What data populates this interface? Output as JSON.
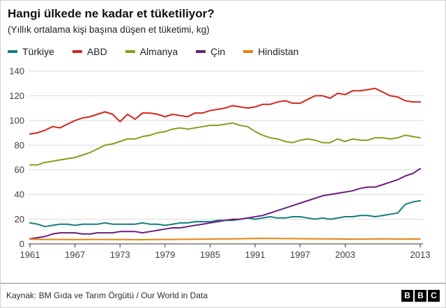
{
  "header": {
    "title": "Hangi ülkede ne kadar et tüketiliyor?",
    "subtitle": "(Yıllık ortalama kişi başına düşen et tüketimi, kg)"
  },
  "footer": {
    "source": "Kaynak: BM Gıda ve Tarım Örgütü / Our World in Data",
    "logo": [
      "B",
      "B",
      "C"
    ]
  },
  "chart_data": {
    "type": "line",
    "title": "Hangi ülkede ne kadar et tüketiliyor?",
    "subtitle": "(Yıllık ortalama kişi başına düşen et tüketimi, kg)",
    "xlabel": "",
    "ylabel": "",
    "ylim": [
      0,
      140
    ],
    "yticks": [
      0,
      20,
      40,
      60,
      80,
      100,
      120,
      140
    ],
    "xticks": [
      1961,
      1967,
      1973,
      1979,
      1985,
      1991,
      1997,
      2003,
      2013
    ],
    "grid": true,
    "legend_position": "top",
    "axis_label_color": "#404040",
    "gridline_color": "#d9d9d9",
    "baseline_color": "#333333",
    "x": [
      1961,
      1962,
      1963,
      1964,
      1965,
      1966,
      1967,
      1968,
      1969,
      1970,
      1971,
      1972,
      1973,
      1974,
      1975,
      1976,
      1977,
      1978,
      1979,
      1980,
      1981,
      1982,
      1983,
      1984,
      1985,
      1986,
      1987,
      1988,
      1989,
      1990,
      1991,
      1992,
      1993,
      1994,
      1995,
      1996,
      1997,
      1998,
      1999,
      2000,
      2001,
      2002,
      2003,
      2004,
      2005,
      2006,
      2007,
      2008,
      2009,
      2010,
      2011,
      2012,
      2013
    ],
    "series": [
      {
        "name": "Türkiye",
        "color": "#147d7d",
        "values": [
          17,
          16,
          14,
          15,
          16,
          16,
          15,
          16,
          16,
          16,
          17,
          16,
          16,
          16,
          16,
          17,
          16,
          16,
          15,
          16,
          17,
          17,
          18,
          18,
          18,
          19,
          19,
          19,
          20,
          21,
          20,
          21,
          22,
          21,
          21,
          22,
          22,
          21,
          20,
          21,
          20,
          21,
          22,
          22,
          23,
          23,
          22,
          23,
          24,
          25,
          32,
          34,
          35
        ]
      },
      {
        "name": "ABD",
        "color": "#d2251d",
        "values": [
          89,
          90,
          92,
          95,
          94,
          97,
          100,
          102,
          103,
          105,
          107,
          105,
          99,
          105,
          101,
          106,
          106,
          105,
          103,
          105,
          104,
          103,
          106,
          106,
          108,
          109,
          110,
          112,
          111,
          110,
          111,
          113,
          113,
          115,
          116,
          114,
          114,
          117,
          120,
          120,
          118,
          122,
          121,
          124,
          124,
          125,
          126,
          123,
          120,
          119,
          116,
          115,
          115
        ]
      },
      {
        "name": "Almanya",
        "color": "#7fa11a",
        "values": [
          64,
          64,
          66,
          67,
          68,
          69,
          70,
          72,
          74,
          77,
          80,
          81,
          83,
          85,
          85,
          87,
          88,
          90,
          91,
          93,
          94,
          93,
          94,
          95,
          96,
          96,
          97,
          98,
          96,
          95,
          91,
          88,
          86,
          85,
          83,
          82,
          84,
          85,
          84,
          82,
          82,
          85,
          83,
          85,
          84,
          84,
          86,
          86,
          85,
          86,
          88,
          87,
          86
        ]
      },
      {
        "name": "Çin",
        "color": "#6b1f7c",
        "values": [
          4,
          5,
          6,
          8,
          9,
          9,
          9,
          8,
          8,
          9,
          9,
          9,
          10,
          10,
          10,
          9,
          10,
          11,
          12,
          13,
          13,
          14,
          15,
          16,
          17,
          18,
          19,
          20,
          20,
          21,
          22,
          23,
          25,
          27,
          29,
          31,
          33,
          35,
          37,
          39,
          40,
          41,
          42,
          43,
          45,
          46,
          46,
          48,
          50,
          52,
          55,
          57,
          61
        ]
      },
      {
        "name": "Hindistan",
        "color": "#e8820d",
        "values": [
          3.7,
          3.7,
          3.6,
          3.6,
          3.6,
          3.5,
          3.5,
          3.5,
          3.6,
          3.6,
          3.6,
          3.5,
          3.5,
          3.5,
          3.4,
          3.4,
          3.5,
          3.5,
          3.6,
          3.6,
          3.7,
          3.7,
          3.8,
          3.8,
          3.9,
          4.0,
          4.0,
          4.1,
          4.2,
          4.3,
          4.4,
          4.5,
          4.4,
          4.4,
          4.3,
          4.3,
          4.2,
          4.2,
          4.1,
          4.1,
          4.0,
          4.0,
          3.9,
          3.9,
          3.8,
          3.9,
          4.0,
          4.1,
          4.0,
          3.9,
          3.9,
          4.0,
          3.9
        ]
      }
    ]
  }
}
